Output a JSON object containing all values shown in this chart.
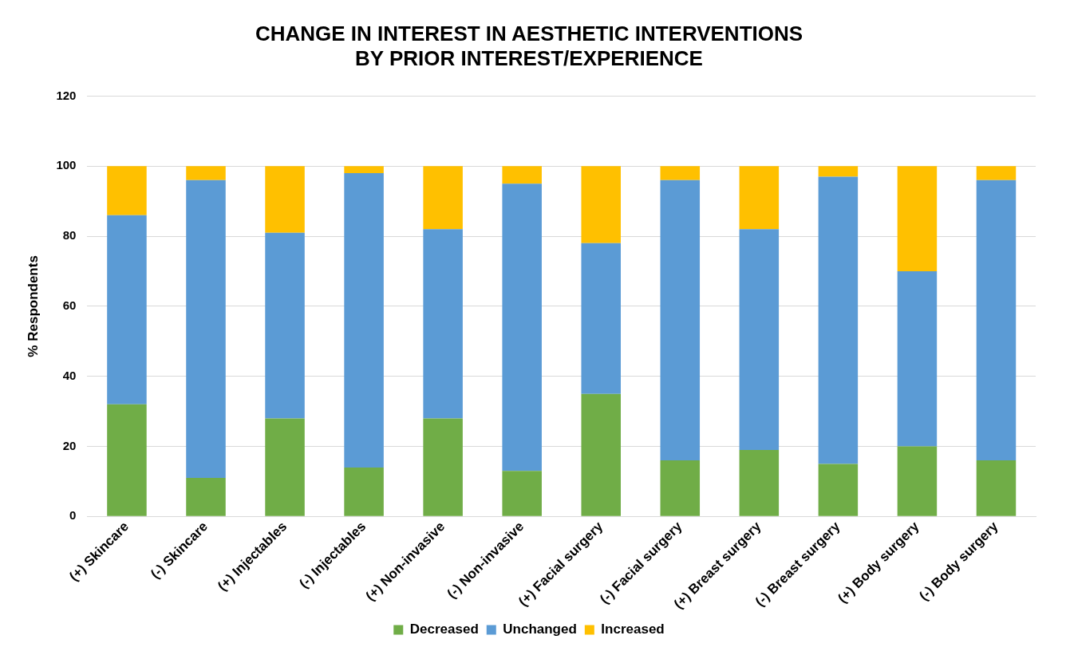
{
  "chart_data": {
    "type": "bar",
    "title": [
      "CHANGE IN INTEREST IN AESTHETIC INTERVENTIONS",
      "BY PRIOR INTEREST/EXPERIENCE"
    ],
    "ylabel": "% Respondents",
    "categories": [
      "(+) Skincare",
      "(-) Skincare",
      "(+) Injectables",
      "(-) Injectables",
      "(+) Non-invasive",
      "(-) Non-invasive",
      "(+) Facial surgery",
      "(-) Facial surgery",
      "(+) Breast surgery",
      "(-) Breast surgery",
      "(+) Body surgery",
      "(-) Body surgery"
    ],
    "series": [
      {
        "name": "Decreased",
        "color": "#70ad47",
        "values": [
          32,
          11,
          28,
          14,
          28,
          13,
          35,
          16,
          19,
          15,
          20,
          16
        ]
      },
      {
        "name": "Unchanged",
        "color": "#5b9bd5",
        "values": [
          54,
          85,
          53,
          84,
          54,
          82,
          43,
          80,
          63,
          82,
          50,
          80
        ]
      },
      {
        "name": "Increased",
        "color": "#ffc000",
        "values": [
          14,
          4,
          19,
          2,
          18,
          5,
          22,
          4,
          18,
          3,
          30,
          4
        ]
      }
    ],
    "stacked": true,
    "ylim": [
      0,
      120
    ],
    "yticks": [
      0,
      20,
      40,
      60,
      80,
      100,
      120
    ],
    "grid": "y",
    "legend": "bottom"
  }
}
